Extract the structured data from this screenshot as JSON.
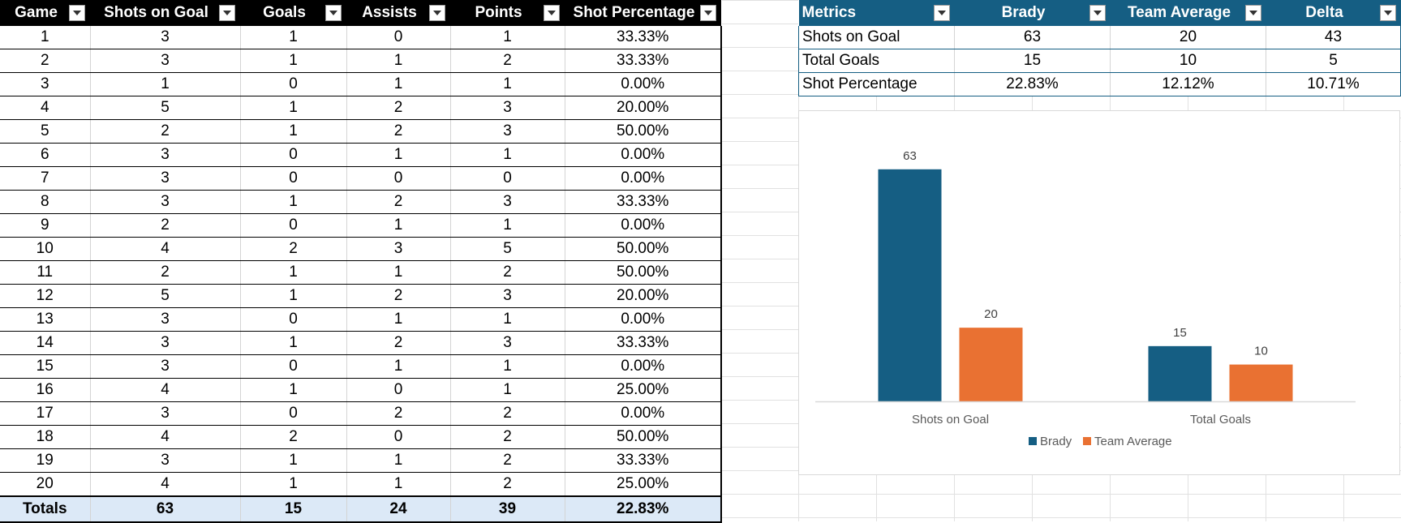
{
  "player_table": {
    "headers": [
      "Game",
      "Shots on Goal",
      "Goals",
      "Assists",
      "Points",
      "Shot Percentage"
    ],
    "rows": [
      [
        "1",
        "3",
        "1",
        "0",
        "1",
        "33.33%"
      ],
      [
        "2",
        "3",
        "1",
        "1",
        "2",
        "33.33%"
      ],
      [
        "3",
        "1",
        "0",
        "1",
        "1",
        "0.00%"
      ],
      [
        "4",
        "5",
        "1",
        "2",
        "3",
        "20.00%"
      ],
      [
        "5",
        "2",
        "1",
        "2",
        "3",
        "50.00%"
      ],
      [
        "6",
        "3",
        "0",
        "1",
        "1",
        "0.00%"
      ],
      [
        "7",
        "3",
        "0",
        "0",
        "0",
        "0.00%"
      ],
      [
        "8",
        "3",
        "1",
        "2",
        "3",
        "33.33%"
      ],
      [
        "9",
        "2",
        "0",
        "1",
        "1",
        "0.00%"
      ],
      [
        "10",
        "4",
        "2",
        "3",
        "5",
        "50.00%"
      ],
      [
        "11",
        "2",
        "1",
        "1",
        "2",
        "50.00%"
      ],
      [
        "12",
        "5",
        "1",
        "2",
        "3",
        "20.00%"
      ],
      [
        "13",
        "3",
        "0",
        "1",
        "1",
        "0.00%"
      ],
      [
        "14",
        "3",
        "1",
        "2",
        "3",
        "33.33%"
      ],
      [
        "15",
        "3",
        "0",
        "1",
        "1",
        "0.00%"
      ],
      [
        "16",
        "4",
        "1",
        "0",
        "1",
        "25.00%"
      ],
      [
        "17",
        "3",
        "0",
        "2",
        "2",
        "0.00%"
      ],
      [
        "18",
        "4",
        "2",
        "0",
        "2",
        "50.00%"
      ],
      [
        "19",
        "3",
        "1",
        "1",
        "2",
        "33.33%"
      ],
      [
        "20",
        "4",
        "1",
        "1",
        "2",
        "25.00%"
      ]
    ],
    "totals": [
      "Totals",
      "63",
      "15",
      "24",
      "39",
      "22.83%"
    ]
  },
  "metrics_table": {
    "headers": [
      "Metrics",
      "Brady",
      "Team Average",
      "Delta"
    ],
    "rows": [
      [
        "Shots on Goal",
        "63",
        "20",
        "43"
      ],
      [
        "Total Goals",
        "15",
        "10",
        "5"
      ],
      [
        "Shot Percentage",
        "22.83%",
        "12.12%",
        "10.71%"
      ]
    ]
  },
  "colors": {
    "left_header_bg": "#000000",
    "metrics_header_bg": "#155e83",
    "totals_bg": "#dce9f7",
    "brady": "#155e83",
    "team_average": "#e97132"
  },
  "chart_data": {
    "type": "bar",
    "categories": [
      "Shots on Goal",
      "Total Goals"
    ],
    "series": [
      {
        "name": "Brady",
        "values": [
          63,
          15
        ],
        "color": "#155e83"
      },
      {
        "name": "Team Average",
        "values": [
          20,
          10
        ],
        "color": "#e97132"
      }
    ],
    "data_labels": true,
    "legend": "bottom",
    "grid": false,
    "ylim": [
      0,
      70
    ],
    "title": "",
    "xlabel": "",
    "ylabel": ""
  }
}
